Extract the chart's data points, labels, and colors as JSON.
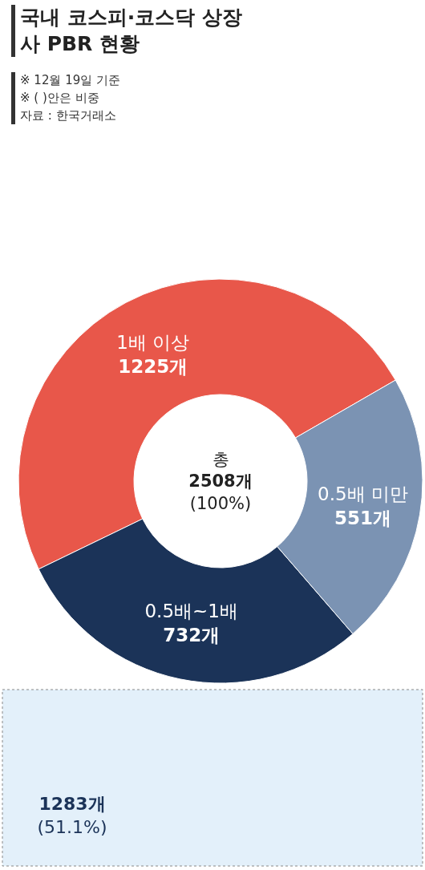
{
  "chart_data": {
    "type": "donut",
    "title": "국내 코스피·코스닥 상장사 PBR 현황",
    "categories": [
      "1배 이상",
      "0.5배~1배",
      "0.5배 미만"
    ],
    "values": [
      1225,
      732,
      551
    ],
    "colors": [
      "#e8574a",
      "#1b3358",
      "#7b93b3"
    ],
    "value_labels": [
      "1225개",
      "732개",
      "551개"
    ],
    "annotations": [
      "※ 12월 19일 기준",
      "※ ( )안은 비중",
      "자료 : 한국거래소",
      "총\n2508개\n(100%)",
      "1283개\n(51.1%)"
    ]
  }
}
